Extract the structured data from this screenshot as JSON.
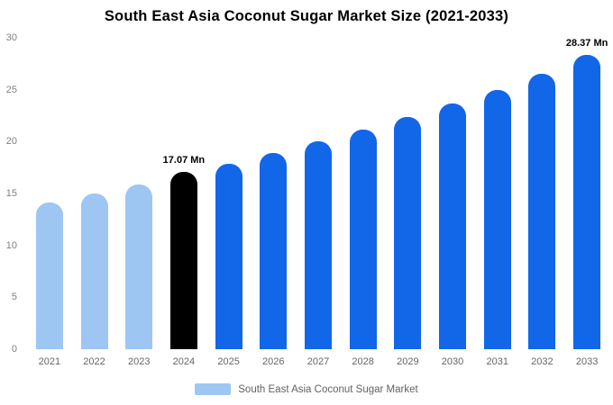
{
  "title": "South East Asia Coconut Sugar Market Size (2021-2033)",
  "legend": {
    "label": "South East Asia Coconut Sugar Market",
    "swatch_color": "#9EC6F3"
  },
  "chart_data": {
    "type": "bar",
    "title": "South East Asia Coconut Sugar Market Size (2021-2033)",
    "categories": [
      "2021",
      "2022",
      "2023",
      "2024",
      "2025",
      "2026",
      "2027",
      "2028",
      "2029",
      "2030",
      "2031",
      "2032",
      "2033"
    ],
    "values": [
      14.1,
      15.0,
      15.9,
      17.07,
      17.9,
      18.9,
      20.0,
      21.2,
      22.4,
      23.7,
      25.0,
      26.5,
      28.37
    ],
    "unit": "Mn",
    "bar_colors": [
      "#9EC6F3",
      "#9EC6F3",
      "#9EC6F3",
      "#000000",
      "#1266E8",
      "#1266E8",
      "#1266E8",
      "#1266E8",
      "#1266E8",
      "#1266E8",
      "#1266E8",
      "#1266E8",
      "#1266E8"
    ],
    "annotations": [
      {
        "index": 3,
        "text": "17.07 Mn"
      },
      {
        "index": 12,
        "text": "28.37 Mn"
      }
    ],
    "ylim": [
      0,
      30
    ],
    "yticks": [
      0,
      5,
      10,
      15,
      20,
      25,
      30
    ],
    "xlabel": "",
    "ylabel": "",
    "grid": false,
    "legend_position": "bottom"
  }
}
